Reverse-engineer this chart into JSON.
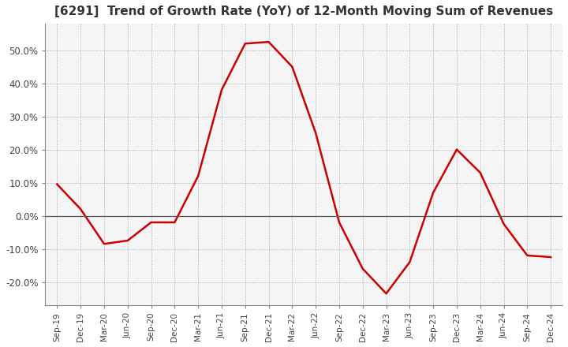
{
  "title": "[6291]  Trend of Growth Rate (YoY) of 12-Month Moving Sum of Revenues",
  "title_fontsize": 11,
  "line_color": "#cc0000",
  "background_color": "#ffffff",
  "plot_bg_color": "#f5f5f5",
  "grid_color": "#aaaaaa",
  "dates": [
    "Sep-19",
    "Dec-19",
    "Mar-20",
    "Jun-20",
    "Sep-20",
    "Dec-20",
    "Mar-21",
    "Jun-21",
    "Sep-21",
    "Dec-21",
    "Mar-22",
    "Jun-22",
    "Sep-22",
    "Dec-22",
    "Mar-23",
    "Jun-23",
    "Sep-23",
    "Dec-23",
    "Mar-24",
    "Jun-24",
    "Sep-24",
    "Dec-24"
  ],
  "values": [
    9.5,
    2.0,
    -8.5,
    -7.5,
    -2.0,
    -2.0,
    12.0,
    38.0,
    52.0,
    52.5,
    45.0,
    25.0,
    -2.0,
    -16.0,
    -23.5,
    -14.0,
    7.0,
    20.0,
    13.0,
    -2.5,
    -12.0,
    -12.5
  ],
  "ylim": [
    -27,
    58
  ],
  "yticks": [
    -20,
    -10,
    0,
    10,
    20,
    30,
    40,
    50
  ],
  "zero_line_color": "#555555"
}
